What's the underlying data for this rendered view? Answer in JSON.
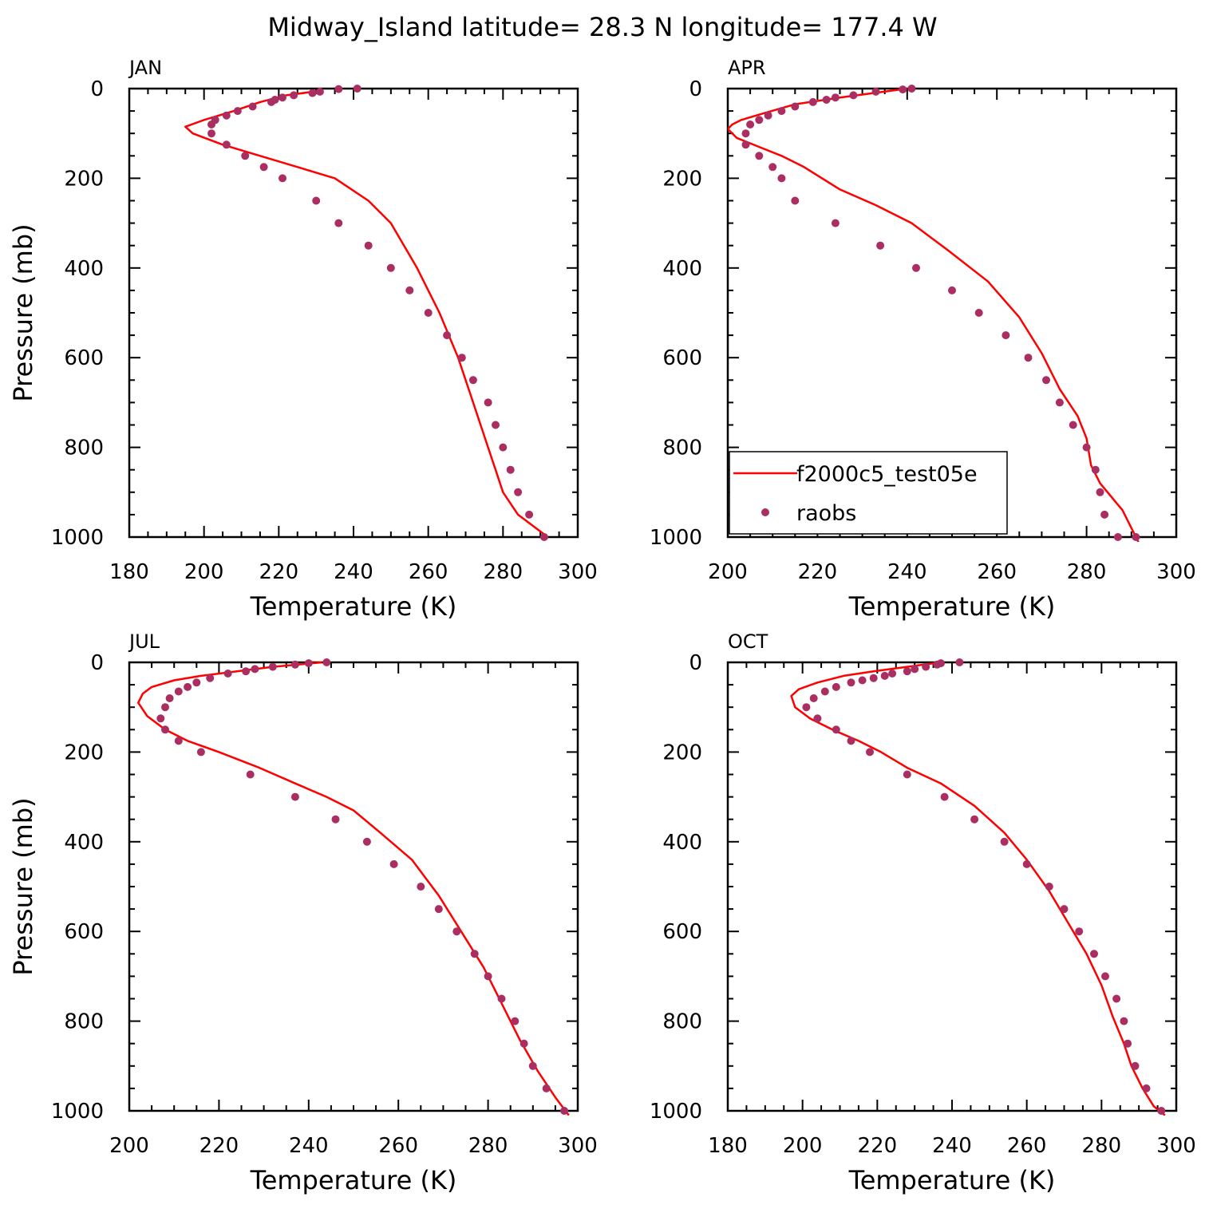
{
  "title": "Midway_Island  latitude= 28.3 N longitude= 177.4 W",
  "colors": {
    "model_line": "#ff0000",
    "obs_points": "#aa2e62",
    "axis": "#000000"
  },
  "legend": {
    "items": [
      {
        "label": "f2000c5_test05e",
        "symbol": "line"
      },
      {
        "label": "raobs",
        "symbol": "marker"
      }
    ]
  },
  "chart_data": [
    {
      "type": "line",
      "panel": "JAN",
      "xlabel": "Temperature (K)",
      "ylabel": "Pressure (mb)",
      "xlim": [
        180,
        300
      ],
      "ylim": [
        0,
        1000
      ],
      "y_inverted": true,
      "xticks": [
        180,
        200,
        220,
        240,
        260,
        280,
        300
      ],
      "yticks": [
        0,
        200,
        400,
        600,
        800,
        1000
      ],
      "legend": false,
      "series": [
        {
          "name": "f2000c5_test05e",
          "style": "line",
          "x": [
            231,
            222,
            215,
            208,
            200,
            195,
            197,
            205,
            215,
            225,
            235,
            244,
            250,
            257,
            263,
            268,
            272,
            276,
            278,
            280,
            284,
            292
          ],
          "y": [
            5,
            15,
            30,
            50,
            70,
            85,
            100,
            125,
            150,
            175,
            200,
            250,
            300,
            400,
            500,
            600,
            700,
            800,
            850,
            900,
            950,
            1000
          ]
        },
        {
          "name": "raobs",
          "style": "markers",
          "x": [
            241,
            236,
            231,
            229,
            224,
            221,
            219,
            218,
            213,
            209,
            206,
            203,
            202,
            202,
            206,
            211,
            216,
            221,
            230,
            236,
            244,
            250,
            255,
            260,
            265,
            269,
            272,
            276,
            278,
            280,
            282,
            284,
            287,
            291
          ],
          "y": [
            0,
            1,
            7,
            10,
            15,
            20,
            25,
            30,
            40,
            50,
            60,
            70,
            80,
            100,
            125,
            150,
            175,
            200,
            250,
            300,
            350,
            400,
            450,
            500,
            550,
            600,
            650,
            700,
            750,
            800,
            850,
            900,
            950,
            1000
          ]
        }
      ]
    },
    {
      "type": "line",
      "panel": "APR",
      "xlabel": "Temperature (K)",
      "ylabel": "",
      "xlim": [
        200,
        300
      ],
      "ylim": [
        0,
        1000
      ],
      "y_inverted": true,
      "xticks": [
        200,
        220,
        240,
        260,
        280,
        300
      ],
      "yticks": [
        0,
        200,
        400,
        600,
        800,
        1000
      ],
      "legend": true,
      "legend_position": "bottom-left",
      "series": [
        {
          "name": "f2000c5_test05e",
          "style": "line",
          "x": [
            240,
            225,
            215,
            208,
            203,
            201,
            200,
            202,
            207,
            212,
            217,
            225,
            233,
            241,
            249,
            258,
            265,
            270,
            274,
            278,
            280,
            281,
            283,
            288,
            292
          ],
          "y": [
            0,
            20,
            35,
            55,
            70,
            80,
            90,
            110,
            130,
            150,
            175,
            225,
            260,
            300,
            360,
            430,
            510,
            590,
            670,
            730,
            780,
            840,
            880,
            940,
            1020
          ]
        },
        {
          "name": "raobs",
          "style": "markers",
          "x": [
            241,
            239,
            233,
            228,
            224,
            222,
            219,
            215,
            212,
            209,
            207,
            205,
            204,
            204,
            207,
            210,
            212,
            215,
            224,
            234,
            242,
            250,
            256,
            262,
            267,
            271,
            274,
            277,
            280,
            282,
            283,
            284,
            287,
            291
          ],
          "y": [
            0,
            2,
            7,
            15,
            20,
            25,
            30,
            40,
            50,
            60,
            70,
            80,
            100,
            125,
            150,
            175,
            200,
            250,
            300,
            350,
            400,
            450,
            500,
            550,
            600,
            650,
            700,
            750,
            800,
            850,
            900,
            950,
            1000,
            1000
          ]
        }
      ]
    },
    {
      "type": "line",
      "panel": "JUL",
      "xlabel": "Temperature (K)",
      "ylabel": "Pressure (mb)",
      "xlim": [
        200,
        300
      ],
      "ylim": [
        0,
        1000
      ],
      "y_inverted": true,
      "xticks": [
        200,
        220,
        240,
        260,
        280,
        300
      ],
      "yticks": [
        0,
        200,
        400,
        600,
        800,
        1000
      ],
      "legend": false,
      "series": [
        {
          "name": "f2000c5_test05e",
          "style": "line",
          "x": [
            243,
            232,
            224,
            216,
            210,
            205,
            203,
            202,
            204,
            208,
            213,
            220,
            229,
            237,
            244,
            250,
            256,
            263,
            269,
            274,
            279,
            283,
            287,
            291,
            295,
            298
          ],
          "y": [
            0,
            10,
            20,
            30,
            40,
            55,
            70,
            90,
            120,
            150,
            175,
            200,
            235,
            270,
            300,
            330,
            380,
            440,
            520,
            600,
            680,
            760,
            840,
            910,
            970,
            1010
          ]
        },
        {
          "name": "raobs",
          "style": "markers",
          "x": [
            244,
            240,
            237,
            232,
            228,
            226,
            222,
            218,
            215,
            213,
            211,
            209,
            208,
            207,
            208,
            211,
            216,
            227,
            237,
            246,
            253,
            259,
            265,
            269,
            273,
            277,
            280,
            283,
            286,
            288,
            290,
            293,
            297
          ],
          "y": [
            0,
            2,
            5,
            10,
            15,
            20,
            25,
            35,
            45,
            55,
            65,
            80,
            100,
            125,
            150,
            175,
            200,
            250,
            300,
            350,
            400,
            450,
            500,
            550,
            600,
            650,
            700,
            750,
            800,
            850,
            900,
            950,
            1000
          ]
        }
      ]
    },
    {
      "type": "line",
      "panel": "OCT",
      "xlabel": "Temperature (K)",
      "ylabel": "",
      "xlim": [
        180,
        300
      ],
      "ylim": [
        0,
        1000
      ],
      "y_inverted": true,
      "xticks": [
        180,
        200,
        220,
        240,
        260,
        280,
        300
      ],
      "yticks": [
        0,
        200,
        400,
        600,
        800,
        1000
      ],
      "legend": false,
      "series": [
        {
          "name": "f2000c5_test05e",
          "style": "line",
          "x": [
            237,
            228,
            219,
            211,
            204,
            199,
            197,
            198,
            202,
            208,
            215,
            221,
            228,
            237,
            246,
            254,
            260,
            266,
            271,
            276,
            280,
            283,
            286,
            288,
            291,
            294,
            297
          ],
          "y": [
            0,
            10,
            20,
            30,
            45,
            60,
            75,
            100,
            125,
            150,
            175,
            200,
            235,
            270,
            320,
            380,
            440,
            510,
            580,
            650,
            720,
            790,
            850,
            900,
            950,
            990,
            1010
          ]
        },
        {
          "name": "raobs",
          "style": "markers",
          "x": [
            242,
            237,
            236,
            233,
            230,
            228,
            224,
            222,
            219,
            216,
            213,
            209,
            206,
            203,
            201,
            204,
            209,
            213,
            218,
            228,
            238,
            246,
            254,
            260,
            266,
            270,
            274,
            278,
            281,
            284,
            286,
            287,
            289,
            292,
            296
          ],
          "y": [
            0,
            2,
            5,
            10,
            15,
            20,
            25,
            30,
            35,
            40,
            45,
            55,
            65,
            80,
            100,
            125,
            150,
            175,
            200,
            250,
            300,
            350,
            400,
            450,
            500,
            550,
            600,
            650,
            700,
            750,
            800,
            850,
            900,
            950,
            1000
          ]
        }
      ]
    }
  ]
}
